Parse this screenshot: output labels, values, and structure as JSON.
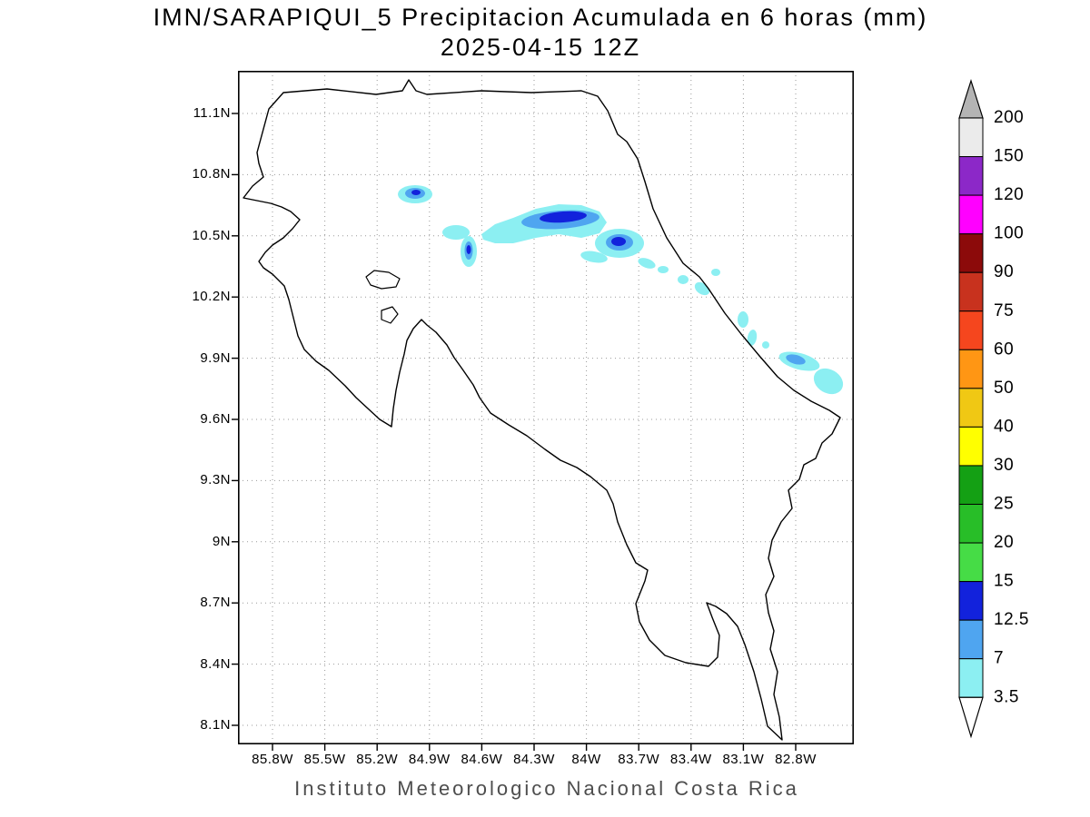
{
  "title": {
    "line1": "IMN/SARAPIQUI_5 Precipitacion Acumulada en 6 horas (mm)",
    "line2": "2025-04-15 12Z"
  },
  "footer": {
    "text": "Instituto Meteorologico Nacional Costa Rica"
  },
  "map": {
    "y_axis": {
      "ticks": [
        "11.1N",
        "10.8N",
        "10.5N",
        "10.2N",
        "9.9N",
        "9.6N",
        "9.3N",
        "9N",
        "8.7N",
        "8.4N",
        "8.1N"
      ]
    },
    "x_axis": {
      "ticks": [
        "85.8W",
        "85.5W",
        "85.2W",
        "84.9W",
        "84.6W",
        "84.3W",
        "84W",
        "83.7W",
        "83.4W",
        "83.1W",
        "82.8W"
      ]
    }
  },
  "colorbar": {
    "labels_top_to_bottom": [
      "200",
      "150",
      "120",
      "100",
      "90",
      "75",
      "60",
      "50",
      "40",
      "30",
      "25",
      "20",
      "15",
      "12.5",
      "7",
      "3.5"
    ],
    "segments_bottom_to_top": [
      {
        "range": "3.5-7",
        "color": "#8CEFF2"
      },
      {
        "range": "7-12.5",
        "color": "#4FA5F0"
      },
      {
        "range": "12.5-15",
        "color": "#1222DC"
      },
      {
        "range": "15-20",
        "color": "#46DC46"
      },
      {
        "range": "20-25",
        "color": "#28BE28"
      },
      {
        "range": "25-30",
        "color": "#14A014"
      },
      {
        "range": "30-40",
        "color": "#FFFF00"
      },
      {
        "range": "40-50",
        "color": "#F0C814"
      },
      {
        "range": "50-60",
        "color": "#FF9614"
      },
      {
        "range": "60-75",
        "color": "#F5461E"
      },
      {
        "range": "75-90",
        "color": "#C8321E"
      },
      {
        "range": "90-100",
        "color": "#8C0A0A"
      },
      {
        "range": "100-120",
        "color": "#FF00FF"
      },
      {
        "range": "120-150",
        "color": "#8C28C8"
      },
      {
        "range": "150-200",
        "color": "#EBEBEB"
      }
    ],
    "arrow_top_color": "#B4B4B4",
    "arrow_bottom_color": "#FFFFFF"
  },
  "chart_data": {
    "type": "contour-map",
    "title": "IMN/SARAPIQUI_5 Precipitacion Acumulada en 6 horas (mm)",
    "valid_time": "2025-04-15 12Z",
    "units": "mm",
    "region": "Costa Rica",
    "lon_ticks": [
      "85.8W",
      "85.5W",
      "85.2W",
      "84.9W",
      "84.6W",
      "84.3W",
      "84W",
      "83.7W",
      "83.4W",
      "83.1W",
      "82.8W"
    ],
    "lat_ticks": [
      "11.1N",
      "10.8N",
      "10.5N",
      "10.2N",
      "9.9N",
      "9.6N",
      "9.3N",
      "9N",
      "8.7N",
      "8.4N",
      "8.1N"
    ],
    "contour_levels_mm": [
      3.5,
      7,
      12.5,
      15,
      20,
      25,
      30,
      40,
      50,
      60,
      75,
      90,
      100,
      120,
      150,
      200
    ],
    "max_shaded_level_mm": 15,
    "shaded_areas_note": "Light precipitation (3.5-15 mm) over northern/central Costa Rica around 10.4-10.7N 83.9-84.6W with cores 12.5-15 mm, plus scattered patches along the Caribbean slope toward 9.9N 82.9W"
  }
}
